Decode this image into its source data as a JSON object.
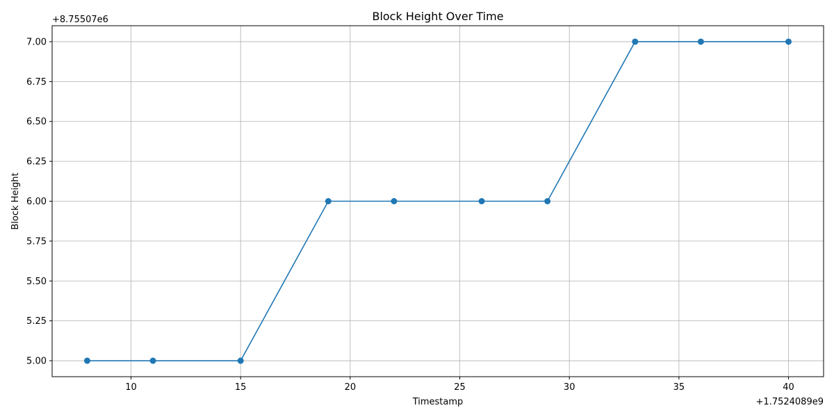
{
  "chart_data": {
    "type": "line",
    "title": "Block Height Over Time",
    "xlabel": "Timestamp",
    "ylabel": "Block Height",
    "x_offset_label": "+1.7524089e9",
    "y_offset_label": "+8.75507e6",
    "xlim": [
      6.4,
      41.6
    ],
    "ylim": [
      4.9,
      7.1
    ],
    "x_ticks": [
      10,
      15,
      20,
      25,
      30,
      35,
      40
    ],
    "x_tick_labels": [
      "10",
      "15",
      "20",
      "25",
      "30",
      "35",
      "40"
    ],
    "y_ticks": [
      5.0,
      5.25,
      5.5,
      5.75,
      6.0,
      6.25,
      6.5,
      6.75,
      7.0
    ],
    "y_tick_labels": [
      "5.00",
      "5.25",
      "5.50",
      "5.75",
      "6.00",
      "6.25",
      "6.50",
      "6.75",
      "7.00"
    ],
    "grid": true,
    "legend": false,
    "series": [
      {
        "color": "#1f77b4",
        "marker": "circle",
        "x": [
          8,
          11,
          15,
          19,
          22,
          26,
          29,
          33,
          36,
          40
        ],
        "y": [
          5,
          5,
          5,
          6,
          6,
          6,
          6,
          7,
          7,
          7
        ]
      }
    ]
  }
}
